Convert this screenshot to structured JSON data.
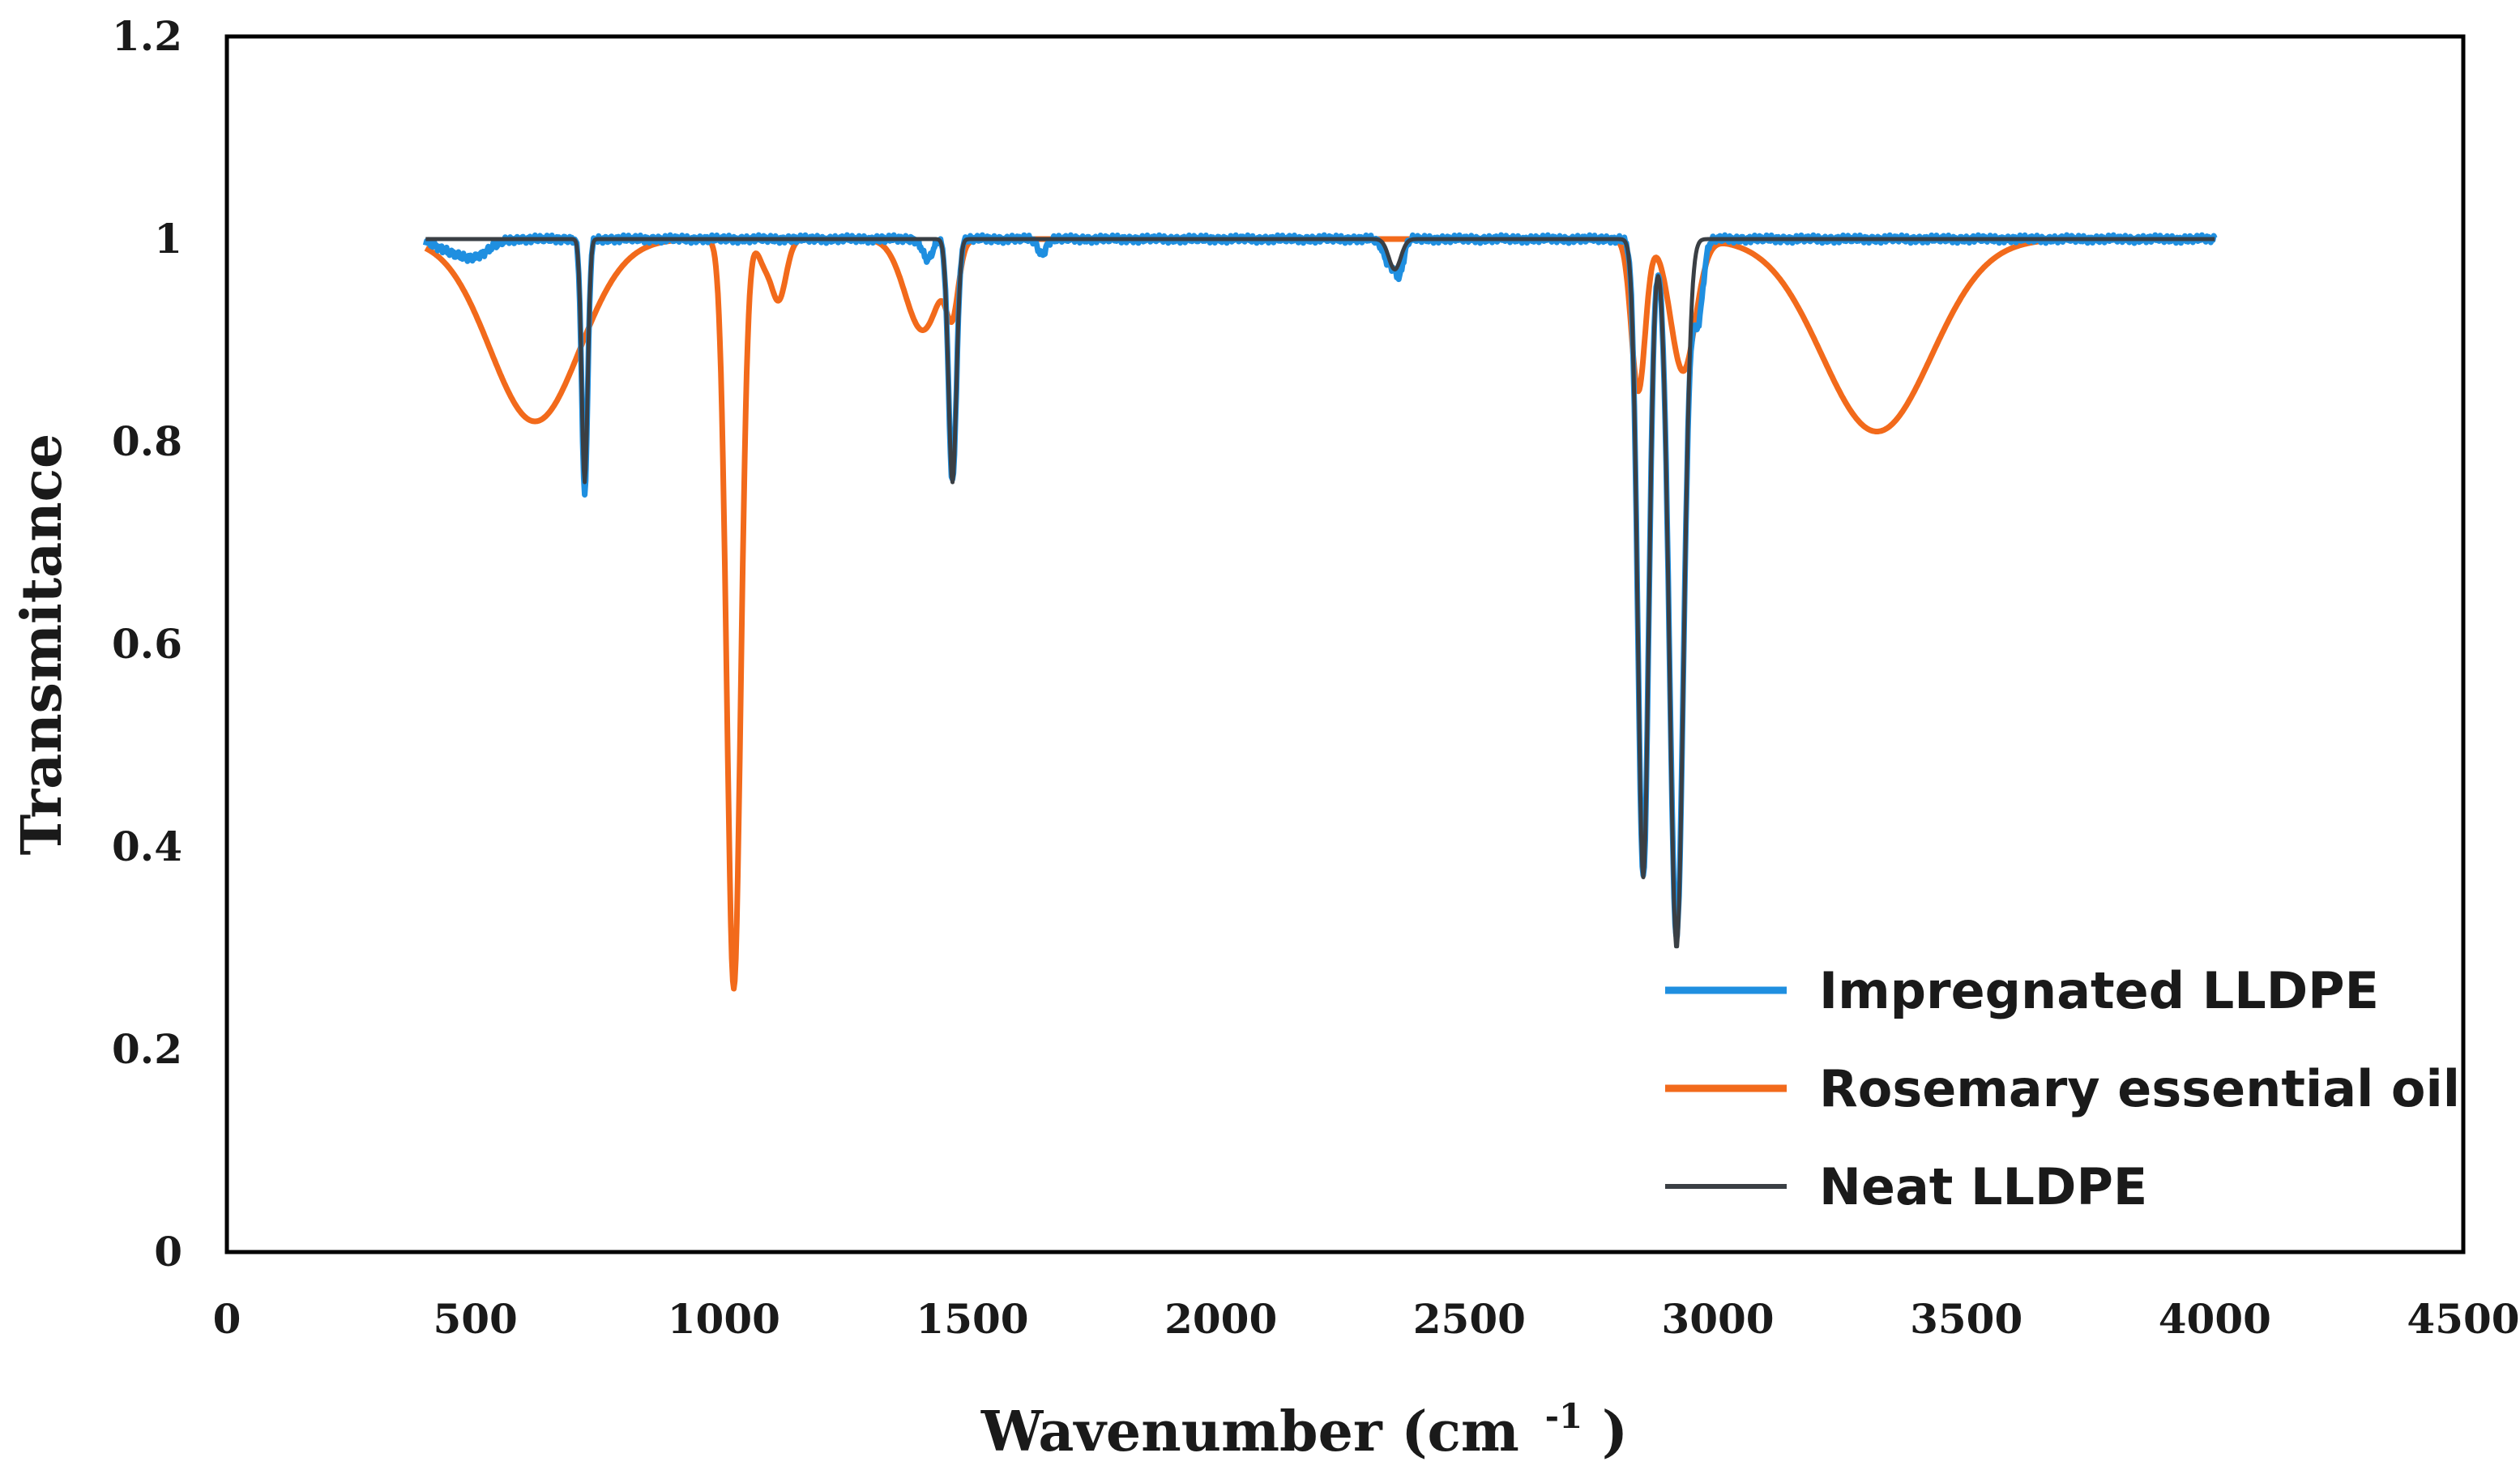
{
  "chart_data": {
    "type": "line",
    "title": "",
    "xlabel": "Wavenumber (cm",
    "xlabel_sup": "-1",
    "xlabel_close": ")",
    "ylabel": "Transmitance",
    "xlim": [
      0,
      4500
    ],
    "ylim": [
      0,
      1.2
    ],
    "xticks": [
      0,
      500,
      1000,
      1500,
      2000,
      2500,
      3000,
      3500,
      4000,
      4500
    ],
    "yticks": [
      0,
      0.2,
      0.4,
      0.6,
      0.8,
      1,
      1.2
    ],
    "ytick_labels": [
      "0",
      "0.2",
      "0.4",
      "0.6",
      "0.8",
      "1",
      "1.2"
    ],
    "grid": false,
    "legend_position": "bottom-right",
    "series": [
      {
        "name": "Impregnated LLDPE",
        "color": "#1f8fe0",
        "baseline": 1.0,
        "x_range": [
          400,
          4000
        ],
        "bands": [
          {
            "center": 450,
            "depth": 0.01,
            "width": 30
          },
          {
            "center": 500,
            "depth": 0.015,
            "width": 30
          },
          {
            "center": 720,
            "depth": 0.25,
            "width": 6
          },
          {
            "center": 1460,
            "depth": 0.24,
            "width": 8
          },
          {
            "center": 1410,
            "depth": 0.02,
            "width": 10
          },
          {
            "center": 1640,
            "depth": 0.015,
            "width": 8
          },
          {
            "center": 2340,
            "depth": 0.025,
            "width": 12
          },
          {
            "center": 2360,
            "depth": 0.03,
            "width": 8
          },
          {
            "center": 2850,
            "depth": 0.63,
            "width": 11
          },
          {
            "center": 2917,
            "depth": 0.69,
            "width": 14
          },
          {
            "center": 2960,
            "depth": 0.08,
            "width": 10
          }
        ]
      },
      {
        "name": "Rosemary essential oil",
        "color": "#f26a1b",
        "baseline": 1.0,
        "x_range": [
          400,
          4000
        ],
        "bands": [
          {
            "center": 620,
            "depth": 0.18,
            "width": 90
          },
          {
            "center": 1020,
            "depth": 0.74,
            "width": 14
          },
          {
            "center": 1080,
            "depth": 0.02,
            "width": 12
          },
          {
            "center": 1110,
            "depth": 0.06,
            "width": 15
          },
          {
            "center": 1400,
            "depth": 0.09,
            "width": 35
          },
          {
            "center": 1460,
            "depth": 0.06,
            "width": 12
          },
          {
            "center": 2840,
            "depth": 0.15,
            "width": 14
          },
          {
            "center": 2930,
            "depth": 0.13,
            "width": 25
          },
          {
            "center": 3320,
            "depth": 0.19,
            "width": 110
          }
        ]
      },
      {
        "name": "Neat LLDPE",
        "color": "#3a3f44",
        "baseline": 1.0,
        "x_range": [
          400,
          4000
        ],
        "bands": [
          {
            "center": 720,
            "depth": 0.24,
            "width": 6
          },
          {
            "center": 1460,
            "depth": 0.24,
            "width": 8
          },
          {
            "center": 2350,
            "depth": 0.03,
            "width": 12
          },
          {
            "center": 2850,
            "depth": 0.63,
            "width": 11
          },
          {
            "center": 2917,
            "depth": 0.7,
            "width": 14
          }
        ]
      }
    ]
  }
}
